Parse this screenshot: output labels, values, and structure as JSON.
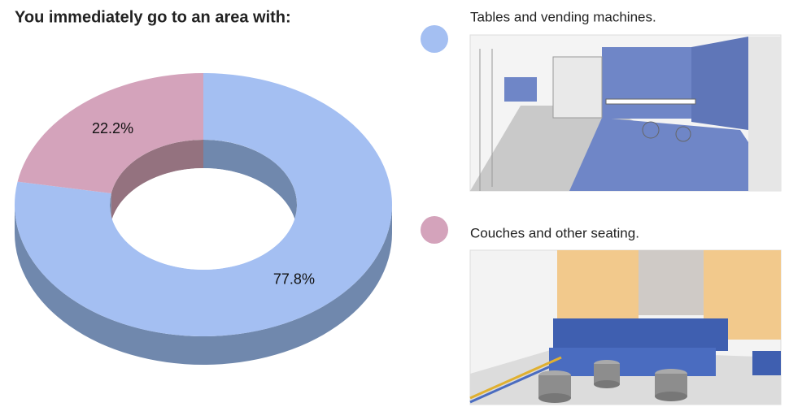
{
  "chart_data": {
    "type": "donut",
    "title": "You immediately go to an area with:",
    "categories": [
      "Tables and vending machines.",
      "Couches and other seating."
    ],
    "values": [
      77.8,
      22.2
    ],
    "value_labels": [
      "77.8%",
      "22.2%"
    ],
    "colors": [
      "#a4bff2",
      "#d4a3bb"
    ],
    "side_colors": [
      "#7088ad",
      "#94727f"
    ]
  }
}
